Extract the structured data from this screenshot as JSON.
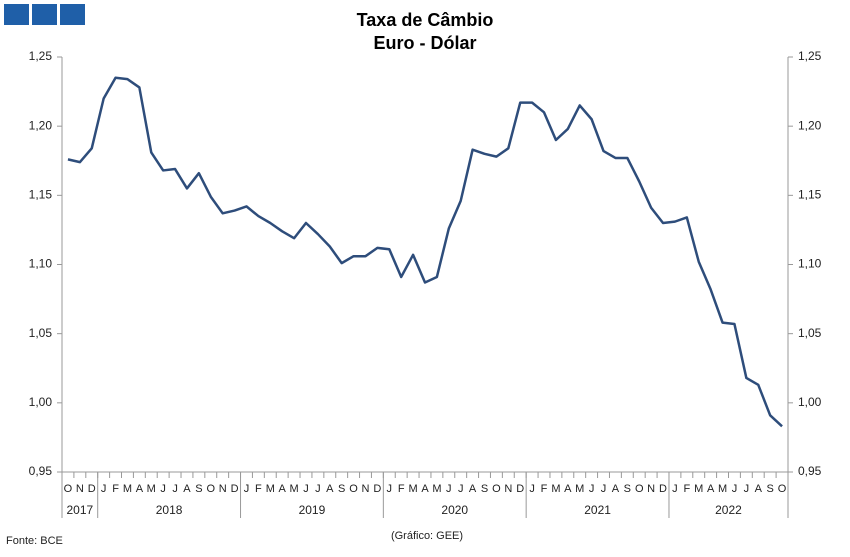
{
  "chart_data": {
    "type": "line",
    "title": "Taxa de Câmbio",
    "subtitle": "Euro - Dólar",
    "source": "Fonte: BCE",
    "note": "(Gráfico: GEE)",
    "categories": [
      "O",
      "N",
      "D",
      "J",
      "F",
      "M",
      "A",
      "M",
      "J",
      "J",
      "A",
      "S",
      "O",
      "N",
      "D",
      "J",
      "F",
      "M",
      "A",
      "M",
      "J",
      "J",
      "A",
      "S",
      "O",
      "N",
      "D",
      "J",
      "F",
      "M",
      "A",
      "M",
      "J",
      "J",
      "A",
      "S",
      "O",
      "N",
      "D",
      "J",
      "F",
      "M",
      "A",
      "M",
      "J",
      "J",
      "A",
      "S",
      "O",
      "N",
      "D",
      "J",
      "F",
      "M",
      "A",
      "M",
      "J",
      "J",
      "A",
      "S",
      "O"
    ],
    "years": [
      {
        "label": "2017",
        "span": 3
      },
      {
        "label": "2018",
        "span": 12
      },
      {
        "label": "2019",
        "span": 12
      },
      {
        "label": "2020",
        "span": 12
      },
      {
        "label": "2021",
        "span": 12
      },
      {
        "label": "2022",
        "span": 10
      }
    ],
    "series": [
      {
        "name": "Euro - Dólar",
        "color": "#2e4d7b",
        "values": [
          1.176,
          1.174,
          1.184,
          1.22,
          1.235,
          1.234,
          1.228,
          1.181,
          1.168,
          1.169,
          1.155,
          1.166,
          1.149,
          1.137,
          1.139,
          1.142,
          1.135,
          1.13,
          1.124,
          1.119,
          1.13,
          1.122,
          1.113,
          1.101,
          1.106,
          1.106,
          1.112,
          1.111,
          1.091,
          1.107,
          1.087,
          1.091,
          1.126,
          1.146,
          1.183,
          1.18,
          1.178,
          1.184,
          1.217,
          1.217,
          1.21,
          1.19,
          1.198,
          1.215,
          1.205,
          1.182,
          1.177,
          1.177,
          1.16,
          1.141,
          1.13,
          1.131,
          1.134,
          1.102,
          1.082,
          1.058,
          1.057,
          1.018,
          1.013,
          0.991,
          0.983
        ]
      }
    ],
    "ylim": [
      0.95,
      1.25
    ],
    "yticks": [
      {
        "value": 0.95,
        "label": "0,95"
      },
      {
        "value": 1.0,
        "label": "1,00"
      },
      {
        "value": 1.05,
        "label": "1,05"
      },
      {
        "value": 1.1,
        "label": "1,10"
      },
      {
        "value": 1.15,
        "label": "1,15"
      },
      {
        "value": 1.2,
        "label": "1,20"
      },
      {
        "value": 1.25,
        "label": "1,25"
      }
    ],
    "y2lim": [
      0.95,
      1.25
    ],
    "y2ticks": [
      {
        "value": 0.95,
        "label": "0,95"
      },
      {
        "value": 1.0,
        "label": "1,00"
      },
      {
        "value": 1.05,
        "label": "1,05"
      },
      {
        "value": 1.1,
        "label": "1,10"
      },
      {
        "value": 1.15,
        "label": "1,15"
      },
      {
        "value": 1.2,
        "label": "1,20"
      },
      {
        "value": 1.25,
        "label": "1,25"
      }
    ],
    "grid": false
  }
}
